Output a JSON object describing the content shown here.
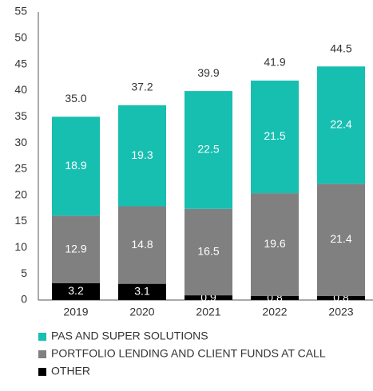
{
  "chart_data": {
    "type": "stacked_bar",
    "categories": [
      "2019",
      "2020",
      "2021",
      "2022",
      "2023"
    ],
    "series": [
      {
        "name": "OTHER",
        "color": "#000000",
        "values": [
          3.2,
          3.1,
          0.9,
          0.8,
          0.8
        ]
      },
      {
        "name": "PORTFOLIO LENDING AND CLIENT FUNDS AT CALL",
        "color": "#808080",
        "values": [
          12.9,
          14.8,
          16.5,
          19.6,
          21.4
        ]
      },
      {
        "name": "PAS AND SUPER SOLUTIONS",
        "color": "#17bfb1",
        "values": [
          18.9,
          19.3,
          22.5,
          21.5,
          22.4
        ]
      }
    ],
    "totals": {
      "values": [
        35,
        37.2,
        39.9,
        41.9,
        44.5
      ],
      "value_labels": [
        "35.0",
        "37.2",
        "39.9",
        "41.9",
        "44.5"
      ]
    },
    "ylim": [
      0,
      55
    ],
    "yticks": [
      0,
      5,
      10,
      15,
      20,
      25,
      30,
      35,
      40,
      45,
      50,
      55
    ],
    "grid": false,
    "legend": "bottom"
  }
}
